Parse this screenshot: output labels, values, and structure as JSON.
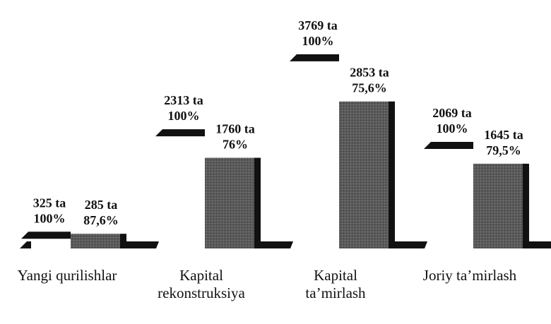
{
  "chart_data": {
    "type": "bar3d",
    "categories": [
      "Yangi qurilishlar",
      "Kapital rekonstruksiya",
      "Kapital ta’mirlash",
      "Joriy ta’mirlash"
    ],
    "series": [
      {
        "color": "#ffffff",
        "values": [
          325,
          2313,
          3769,
          2069
        ],
        "value_labels": [
          "325 ta",
          "2313 ta",
          "3769 ta",
          "2069 ta"
        ],
        "shares": [
          100,
          100,
          100,
          100
        ],
        "share_labels": [
          "100%",
          "100%",
          "100%",
          "100%"
        ]
      },
      {
        "color": "#555555",
        "values": [
          285,
          1760,
          2853,
          1645
        ],
        "value_labels": [
          "285 ta",
          "1760 ta",
          "2853 ta",
          "1645 ta"
        ],
        "shares": [
          87.6,
          76,
          75.6,
          79.5
        ],
        "share_labels": [
          "87,6%",
          "76%",
          "75,6%",
          "79,5%"
        ]
      }
    ]
  }
}
